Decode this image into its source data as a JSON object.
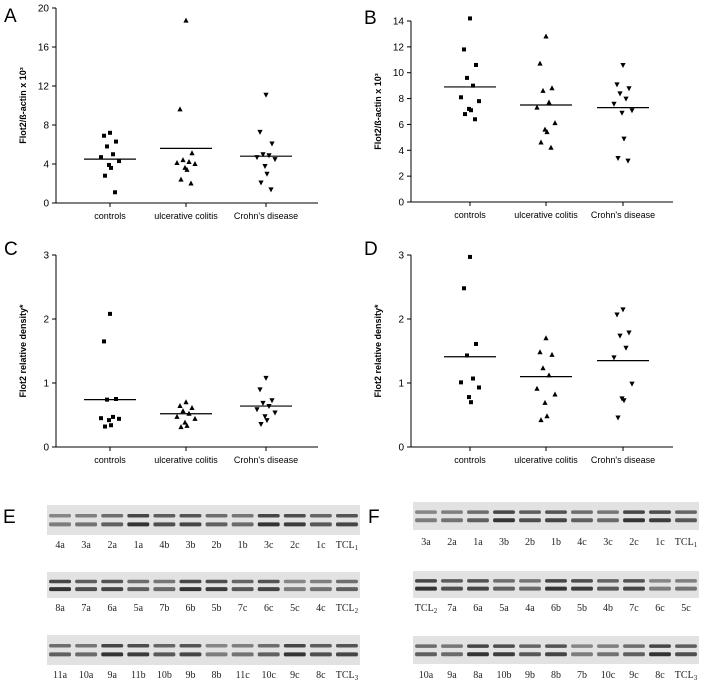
{
  "colors": {
    "ink": "#000000",
    "blot_bg": "#e2e2e2",
    "band": "#2a2a2a"
  },
  "chart_data": [
    {
      "id": "A",
      "type": "scatter",
      "panel_label": "A",
      "ylabel": "Flot2/ß-actin x 10³",
      "ylim": [
        0,
        20
      ],
      "yticks": [
        0,
        4,
        8,
        12,
        16,
        20
      ],
      "categories": [
        "controls",
        "ulcerative colitis",
        "Crohn's disease"
      ],
      "series": [
        {
          "name": "controls",
          "marker": "square",
          "values": [
            7.2,
            6.9,
            6.3,
            5.8,
            5.0,
            4.7,
            4.3,
            3.9,
            3.6,
            2.8,
            1.1
          ],
          "mean": 4.5
        },
        {
          "name": "ulcerative colitis",
          "marker": "triangle-up",
          "values": [
            18.7,
            9.6,
            5.1,
            4.4,
            4.2,
            4.1,
            4.0,
            3.6,
            3.4,
            2.4,
            2.0
          ],
          "mean": 5.6
        },
        {
          "name": "Crohn's disease",
          "marker": "triangle-down",
          "values": [
            11.1,
            7.3,
            6.1,
            5.0,
            4.9,
            4.7,
            4.5,
            3.8,
            3.0,
            2.1,
            1.4
          ],
          "mean": 4.8
        }
      ]
    },
    {
      "id": "B",
      "type": "scatter",
      "panel_label": "B",
      "ylabel": "Flot2/ß-actin x 10³",
      "ylim": [
        0,
        14
      ],
      "yticks": [
        0,
        2,
        4,
        6,
        8,
        10,
        12,
        14
      ],
      "categories": [
        "controls",
        "ulcerative colitis",
        "Crohn's disease"
      ],
      "series": [
        {
          "name": "controls",
          "marker": "square",
          "values": [
            14.2,
            11.8,
            10.6,
            9.6,
            9.0,
            8.1,
            7.8,
            7.2,
            7.1,
            6.8,
            6.4
          ],
          "mean": 8.9
        },
        {
          "name": "ulcerative colitis",
          "marker": "triangle-up",
          "values": [
            12.8,
            10.7,
            8.8,
            8.6,
            7.7,
            7.3,
            6.1,
            5.6,
            5.4,
            4.6,
            4.2
          ],
          "mean": 7.5
        },
        {
          "name": "Crohn's disease",
          "marker": "triangle-down",
          "values": [
            10.6,
            9.1,
            8.8,
            8.4,
            8.0,
            7.6,
            7.1,
            6.9,
            4.9,
            3.4,
            3.2
          ],
          "mean": 7.3
        }
      ]
    },
    {
      "id": "C",
      "type": "scatter",
      "panel_label": "C",
      "ylabel": "Flot2 relative density*",
      "ylim": [
        0,
        3
      ],
      "yticks": [
        0,
        1,
        2,
        3
      ],
      "categories": [
        "controls",
        "ulcerative colitis",
        "Crohn's disease"
      ],
      "series": [
        {
          "name": "controls",
          "marker": "square",
          "values": [
            2.08,
            1.65,
            0.75,
            0.74,
            0.47,
            0.45,
            0.44,
            0.42,
            0.34,
            0.32
          ],
          "mean": 0.74
        },
        {
          "name": "ulcerative colitis",
          "marker": "triangle-up",
          "values": [
            0.7,
            0.64,
            0.61,
            0.56,
            0.52,
            0.47,
            0.44,
            0.38,
            0.33,
            0.31
          ],
          "mean": 0.52
        },
        {
          "name": "Crohn's disease",
          "marker": "triangle-down",
          "values": [
            1.08,
            0.9,
            0.73,
            0.69,
            0.64,
            0.59,
            0.54,
            0.48,
            0.42,
            0.36
          ],
          "mean": 0.64
        }
      ]
    },
    {
      "id": "D",
      "type": "scatter",
      "panel_label": "D",
      "ylabel": "Flot2 relative density*",
      "ylim": [
        0,
        3
      ],
      "yticks": [
        0,
        1,
        2,
        3
      ],
      "categories": [
        "controls",
        "ulcerative colitis",
        "Crohn's disease"
      ],
      "series": [
        {
          "name": "controls",
          "marker": "square",
          "values": [
            2.97,
            2.48,
            1.61,
            1.43,
            1.07,
            1.01,
            0.93,
            0.78,
            0.7
          ],
          "mean": 1.41
        },
        {
          "name": "ulcerative colitis",
          "marker": "triangle-up",
          "values": [
            1.7,
            1.48,
            1.44,
            1.23,
            1.12,
            0.91,
            0.82,
            0.69,
            0.48,
            0.42
          ],
          "mean": 1.1
        },
        {
          "name": "Crohn's disease",
          "marker": "triangle-down",
          "values": [
            2.15,
            2.07,
            1.79,
            1.74,
            1.55,
            1.4,
            0.99,
            0.76,
            0.73,
            0.46
          ],
          "mean": 1.35
        }
      ]
    }
  ],
  "blots": {
    "E": {
      "panel_label": "E",
      "rows": [
        [
          "4a",
          "3a",
          "2a",
          "1a",
          "4b",
          "3b",
          "2b",
          "1b",
          "3c",
          "2c",
          "1c",
          "TCL1"
        ],
        [
          "8a",
          "7a",
          "6a",
          "5a",
          "7b",
          "6b",
          "5b",
          "7c",
          "6c",
          "5c",
          "4c",
          "TCL2"
        ],
        [
          "11a",
          "10a",
          "9a",
          "11b",
          "10b",
          "9b",
          "8b",
          "11c",
          "10c",
          "9c",
          "8c",
          "TCL3"
        ]
      ]
    },
    "F": {
      "panel_label": "F",
      "rows": [
        [
          "3a",
          "2a",
          "1a",
          "3b",
          "2b",
          "1b",
          "4c",
          "3c",
          "2c",
          "1c",
          "TCL1"
        ],
        [
          "TCL2",
          "7a",
          "6a",
          "5a",
          "4a",
          "6b",
          "5b",
          "4b",
          "7c",
          "6c",
          "5c"
        ],
        [
          "10a",
          "9a",
          "8a",
          "10b",
          "9b",
          "8b",
          "7b",
          "10c",
          "9c",
          "8c",
          "TCL3"
        ]
      ]
    }
  }
}
